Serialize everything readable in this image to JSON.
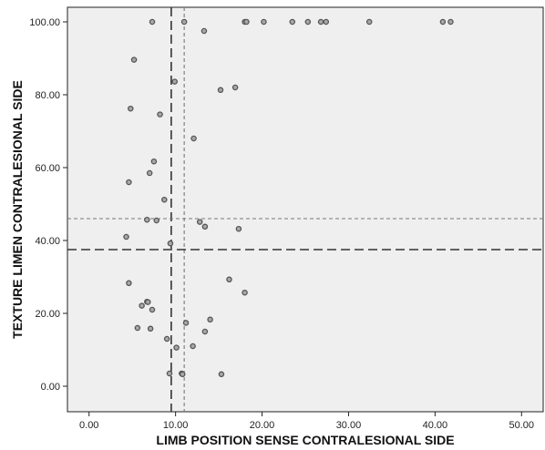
{
  "chart_data": {
    "type": "scatter",
    "title": "",
    "xlabel": "LIMB POSITION SENSE CONTRALESIONAL SIDE",
    "ylabel": "TEXTURE LIMEN CONTRALESIONAL SIDE",
    "xlim": [
      -2.5,
      52.5
    ],
    "ylim": [
      -7,
      104
    ],
    "xticks": [
      0,
      10,
      20,
      30,
      40,
      50
    ],
    "xtick_labels": [
      "0.00",
      "10.00",
      "20.00",
      "30.00",
      "40.00",
      "50.00"
    ],
    "yticks": [
      0,
      20,
      40,
      60,
      80,
      100
    ],
    "ytick_labels": [
      "0.00",
      "20.00",
      "40.00",
      "60.00",
      "80.00",
      "100.00"
    ],
    "grid": false,
    "plot_background": "#efefef",
    "reference_lines": [
      {
        "axis": "x",
        "value": 9.5,
        "style": "dashed-dark"
      },
      {
        "axis": "x",
        "value": 11.0,
        "style": "dashed-light"
      },
      {
        "axis": "y",
        "value": 37.5,
        "style": "dashed-dark"
      },
      {
        "axis": "y",
        "value": 46.0,
        "style": "dashed-light"
      }
    ],
    "series": [
      {
        "marker_color": "#555555",
        "points": [
          [
            7.3,
            100
          ],
          [
            11.0,
            100
          ],
          [
            18.0,
            100
          ],
          [
            18.2,
            100
          ],
          [
            20.2,
            100
          ],
          [
            23.5,
            100
          ],
          [
            25.3,
            100
          ],
          [
            26.8,
            100
          ],
          [
            27.4,
            100
          ],
          [
            32.4,
            100
          ],
          [
            40.9,
            100
          ],
          [
            41.8,
            100
          ],
          [
            13.3,
            97.5
          ],
          [
            5.2,
            89.6
          ],
          [
            9.9,
            83.6
          ],
          [
            16.9,
            82.0
          ],
          [
            15.2,
            81.3
          ],
          [
            4.8,
            76.2
          ],
          [
            8.2,
            74.6
          ],
          [
            12.1,
            68.0
          ],
          [
            7.5,
            61.7
          ],
          [
            7.0,
            58.5
          ],
          [
            4.6,
            56.0
          ],
          [
            8.7,
            51.2
          ],
          [
            6.7,
            45.7
          ],
          [
            7.8,
            45.5
          ],
          [
            12.8,
            45.1
          ],
          [
            13.4,
            43.8
          ],
          [
            17.3,
            43.2
          ],
          [
            4.3,
            41.0
          ],
          [
            9.4,
            39.2
          ],
          [
            16.2,
            29.3
          ],
          [
            4.6,
            28.3
          ],
          [
            18.0,
            25.7
          ],
          [
            6.7,
            23.2
          ],
          [
            6.8,
            23.1
          ],
          [
            6.1,
            22.1
          ],
          [
            7.3,
            21.0
          ],
          [
            14.0,
            18.3
          ],
          [
            11.2,
            17.4
          ],
          [
            5.6,
            16.0
          ],
          [
            7.1,
            15.8
          ],
          [
            13.4,
            15.0
          ],
          [
            9.0,
            13.0
          ],
          [
            12.0,
            11.0
          ],
          [
            10.1,
            10.6
          ],
          [
            9.3,
            3.5
          ],
          [
            10.7,
            3.5
          ],
          [
            10.8,
            3.3
          ],
          [
            15.3,
            3.3
          ]
        ]
      }
    ]
  }
}
